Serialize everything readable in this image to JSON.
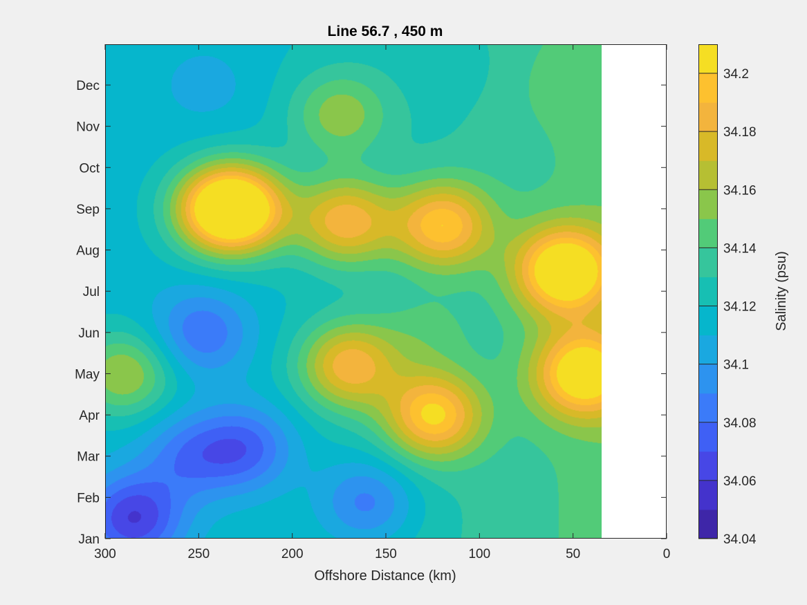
{
  "chart_data": {
    "type": "heatmap",
    "subtype": "filled-contour",
    "title": "Line 56.7 , 450 m",
    "xlabel": "Offshore Distance (km)",
    "ylabel": "",
    "xlim": [
      300,
      0
    ],
    "x_direction": "reversed",
    "x_ticks": [
      "300",
      "250",
      "200",
      "150",
      "100",
      "50",
      "0"
    ],
    "y_ticks": [
      "Jan",
      "Feb",
      "Mar",
      "Apr",
      "May",
      "Jun",
      "Jul",
      "Aug",
      "Sep",
      "Oct",
      "Nov",
      "Dec"
    ],
    "data_extent_km": [
      300,
      35
    ],
    "colorbar": {
      "label": "Salinity (psu)",
      "range": [
        34.04,
        34.21
      ],
      "tick_values": [
        34.04,
        34.06,
        34.08,
        34.1,
        34.12,
        34.14,
        34.16,
        34.18,
        34.2
      ],
      "tick_labels": [
        "34.04",
        "34.06",
        "34.08",
        "34.1",
        "34.12",
        "34.14",
        "34.16",
        "34.18",
        "34.2"
      ],
      "levels": [
        34.04,
        34.05,
        34.06,
        34.07,
        34.08,
        34.09,
        34.1,
        34.11,
        34.12,
        34.13,
        34.14,
        34.15,
        34.16,
        34.17,
        34.18,
        34.19,
        34.2,
        34.21
      ],
      "colors": [
        "#3e26a8",
        "#4433cc",
        "#4747e6",
        "#3f60f5",
        "#3b7bf9",
        "#2d93ef",
        "#1aa8e0",
        "#06b6cc",
        "#17bfb3",
        "#36c59c",
        "#52cb78",
        "#8ac64b",
        "#b6bf33",
        "#d8b928",
        "#f3b43d",
        "#fdc12f",
        "#f5de23"
      ]
    },
    "base_salinity": 34.115,
    "features": [
      {
        "km": 285,
        "month": 1.5,
        "value": 34.06
      },
      {
        "km": 255,
        "month": 3.0,
        "value": 34.085
      },
      {
        "km": 225,
        "month": 3.2,
        "value": 34.075
      },
      {
        "km": 160,
        "month": 1.9,
        "value": 34.08
      },
      {
        "km": 248,
        "month": 6.0,
        "value": 34.08
      },
      {
        "km": 290,
        "month": 5.0,
        "value": 34.16
      },
      {
        "km": 240,
        "month": 9.0,
        "value": 34.185
      },
      {
        "km": 227,
        "month": 9.0,
        "value": 34.19
      },
      {
        "km": 172,
        "month": 8.7,
        "value": 34.18
      },
      {
        "km": 120,
        "month": 8.6,
        "value": 34.185
      },
      {
        "km": 170,
        "month": 5.2,
        "value": 34.18
      },
      {
        "km": 125,
        "month": 4.0,
        "value": 34.19
      },
      {
        "km": 55,
        "month": 7.5,
        "value": 34.205
      },
      {
        "km": 45,
        "month": 5.0,
        "value": 34.195
      },
      {
        "km": 130,
        "month": 6.0,
        "value": 34.13
      },
      {
        "km": 60,
        "month": 12.0,
        "value": 34.12
      },
      {
        "km": 110,
        "month": 12.5,
        "value": 34.11
      },
      {
        "km": 245,
        "month": 12.0,
        "value": 34.105
      },
      {
        "km": 175,
        "month": 11.3,
        "value": 34.15
      },
      {
        "km": 100,
        "month": 2.0,
        "value": 34.115
      }
    ]
  }
}
